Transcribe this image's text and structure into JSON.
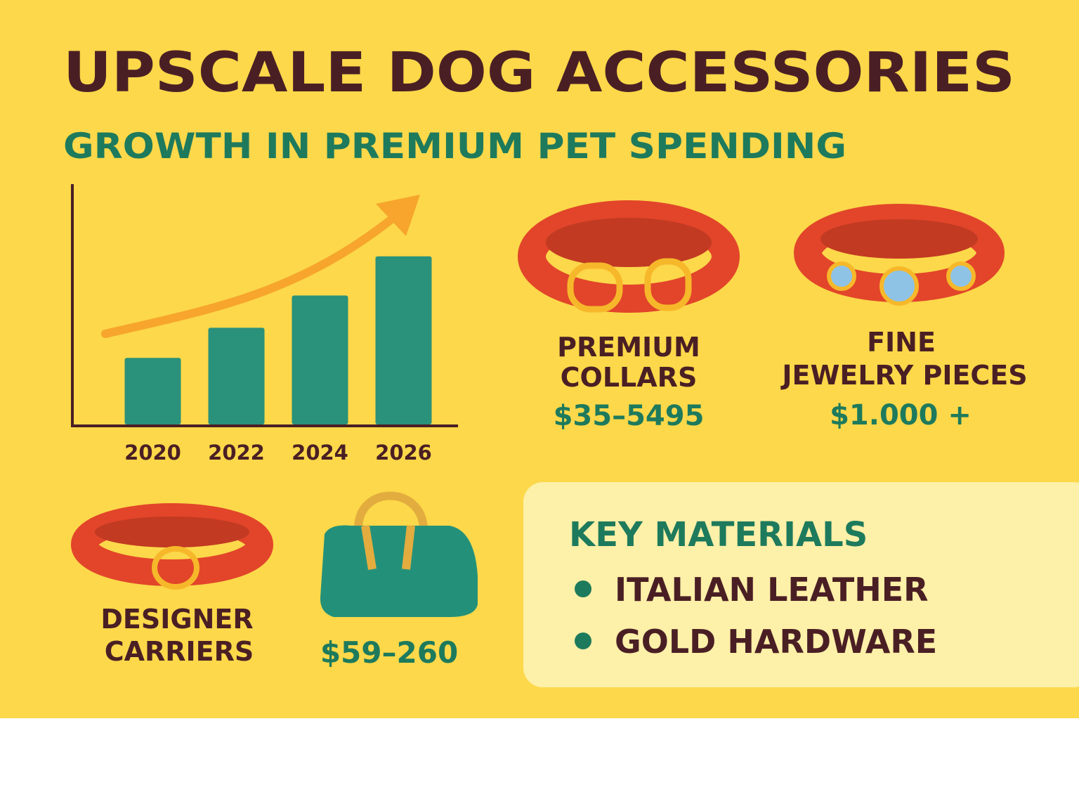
{
  "title": "UPSCALE DOG ACCESSORIES",
  "subtitle": "GROWTH IN PREMIUM PET SPENDING",
  "chart_data": {
    "type": "bar",
    "categories": [
      "2020",
      "2022",
      "2024",
      "2026"
    ],
    "values": [
      95,
      138,
      184,
      240
    ],
    "color": "#2a917a",
    "ylim": [
      0,
      343
    ]
  },
  "products": [
    {
      "label_lines": [
        "PREMIUM",
        "COLLARS"
      ],
      "price": "$35–5495"
    },
    {
      "label_lines": [
        "FINE",
        "JEWELRY PIECES"
      ],
      "price": "$1.000 +"
    },
    {
      "label_lines": [
        "DESIGNER",
        "CARRIERS"
      ],
      "price": "$59–260"
    }
  ],
  "key_materials": {
    "title": "KEY MATERIALS",
    "items": [
      "ITALIAN LEATHER",
      "GOLD HARDWARE"
    ]
  }
}
